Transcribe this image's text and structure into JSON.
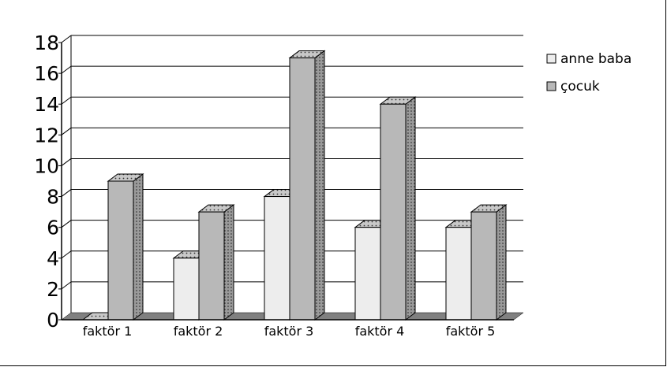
{
  "chart_data": {
    "type": "bar",
    "categories": [
      "faktör  1",
      "faktör  2",
      "faktör  3",
      "faktör  4",
      "faktör  5"
    ],
    "series": [
      {
        "name": "anne baba",
        "values": [
          0,
          4,
          8,
          6,
          6
        ]
      },
      {
        "name": "çocuk",
        "values": [
          9,
          7,
          17,
          14,
          7
        ]
      }
    ],
    "ylim": [
      0,
      18
    ],
    "yticks": [
      "0",
      "2",
      "4",
      "6",
      "8",
      "10",
      "12",
      "14",
      "16",
      "18"
    ],
    "grid": true,
    "legend_position": "top-right",
    "colors": {
      "anne baba": "#ededed",
      "çocuk": "#b8b8b8",
      "floor": "#808080",
      "top": "#c8c8c8",
      "side": "#909090"
    }
  }
}
